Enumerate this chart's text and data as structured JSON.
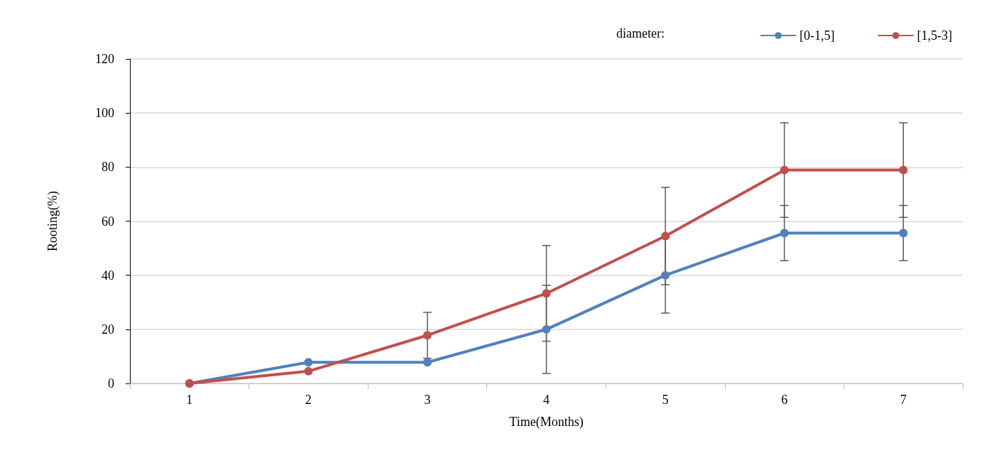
{
  "chart_data": {
    "type": "line",
    "xlabel": "Time(Months)",
    "ylabel": "Rooting(%)",
    "legend_title": "diameter:",
    "categories": [
      "1",
      "2",
      "3",
      "4",
      "5",
      "6",
      "7"
    ],
    "series": [
      {
        "name": "[0-1,5]",
        "color": "#4f81bd",
        "values": [
          0,
          7.8,
          7.8,
          20,
          40,
          55.6,
          55.6
        ],
        "errors": [
          null,
          null,
          null,
          16.3,
          14,
          10.2,
          10.2
        ]
      },
      {
        "name": "[1,5-3]",
        "color": "#c0504d",
        "values": [
          0,
          4.5,
          17.8,
          33.3,
          54.5,
          78.9,
          78.9
        ],
        "errors": [
          null,
          null,
          8.5,
          17.7,
          18,
          17.5,
          17.5
        ]
      }
    ],
    "ylim": [
      0,
      120
    ],
    "yticks": [
      0,
      20,
      40,
      60,
      80,
      100,
      120
    ],
    "grid": "y",
    "legend": "top right",
    "marker": "circle",
    "line_style": "solid"
  }
}
